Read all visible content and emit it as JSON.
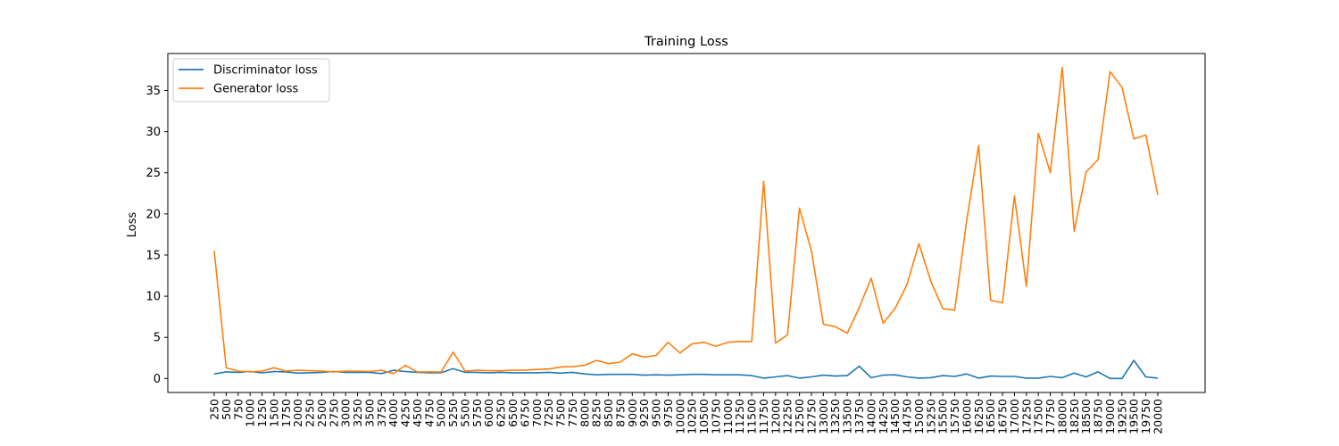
{
  "chart_data": {
    "type": "line",
    "title": "Training Loss",
    "xlabel": "",
    "ylabel": "Loss",
    "ylim": [
      -1.7,
      39.5
    ],
    "yticks": [
      0,
      5,
      10,
      15,
      20,
      25,
      30,
      35
    ],
    "grid": false,
    "legend_position": "top-left",
    "x": [
      250,
      500,
      750,
      1000,
      1250,
      1500,
      1750,
      2000,
      2250,
      2500,
      2750,
      3000,
      3250,
      3500,
      3750,
      4000,
      4250,
      4500,
      4750,
      5000,
      5250,
      5500,
      5750,
      6000,
      6250,
      6500,
      6750,
      7000,
      7250,
      7500,
      7750,
      8000,
      8250,
      8500,
      8750,
      9000,
      9250,
      9500,
      9750,
      10000,
      10250,
      10500,
      10750,
      11000,
      11250,
      11500,
      11750,
      12000,
      12250,
      12500,
      12750,
      13000,
      13250,
      13500,
      13750,
      14000,
      14250,
      14500,
      14750,
      15000,
      15250,
      15500,
      15750,
      16000,
      16250,
      16500,
      16750,
      17000,
      17250,
      17500,
      17750,
      18000,
      18250,
      18500,
      18750,
      19000,
      19250,
      19500,
      19750,
      20000
    ],
    "series": [
      {
        "name": "Discriminator loss",
        "color": "#1f77b4",
        "values": [
          0.55,
          0.8,
          0.75,
          0.85,
          0.7,
          0.85,
          0.8,
          0.65,
          0.7,
          0.75,
          0.85,
          0.75,
          0.75,
          0.75,
          0.6,
          1.0,
          0.85,
          0.75,
          0.7,
          0.7,
          1.2,
          0.75,
          0.75,
          0.7,
          0.75,
          0.7,
          0.7,
          0.7,
          0.75,
          0.65,
          0.75,
          0.55,
          0.45,
          0.5,
          0.5,
          0.5,
          0.4,
          0.45,
          0.4,
          0.45,
          0.5,
          0.5,
          0.45,
          0.45,
          0.45,
          0.35,
          0.05,
          0.2,
          0.35,
          0.05,
          0.2,
          0.4,
          0.3,
          0.35,
          1.5,
          0.1,
          0.4,
          0.45,
          0.2,
          0.05,
          0.1,
          0.35,
          0.25,
          0.55,
          0.05,
          0.3,
          0.25,
          0.25,
          0.05,
          0.05,
          0.25,
          0.1,
          0.65,
          0.2,
          0.8,
          0.0,
          0.0,
          2.2,
          0.2,
          0.05
        ]
      },
      {
        "name": "Generator loss",
        "color": "#ff7f0e",
        "values": [
          15.5,
          1.3,
          0.9,
          0.8,
          0.9,
          1.3,
          0.9,
          1.0,
          0.95,
          0.9,
          0.8,
          0.9,
          0.9,
          0.85,
          1.0,
          0.6,
          1.6,
          0.8,
          0.8,
          0.8,
          3.2,
          0.9,
          1.0,
          0.95,
          0.95,
          1.0,
          1.0,
          1.1,
          1.15,
          1.4,
          1.45,
          1.6,
          2.2,
          1.8,
          2.0,
          3.0,
          2.6,
          2.8,
          4.4,
          3.1,
          4.2,
          4.4,
          3.9,
          4.4,
          4.5,
          4.5,
          24.0,
          4.3,
          5.3,
          20.7,
          15.5,
          6.6,
          6.3,
          5.5,
          8.6,
          12.2,
          6.7,
          8.5,
          11.4,
          16.4,
          11.8,
          8.5,
          8.3,
          19.2,
          28.3,
          9.5,
          9.2,
          22.2,
          11.2,
          29.8,
          25.0,
          37.8,
          17.9,
          25.1,
          26.6,
          37.3,
          35.4,
          29.1,
          29.6,
          22.3
        ]
      }
    ]
  }
}
